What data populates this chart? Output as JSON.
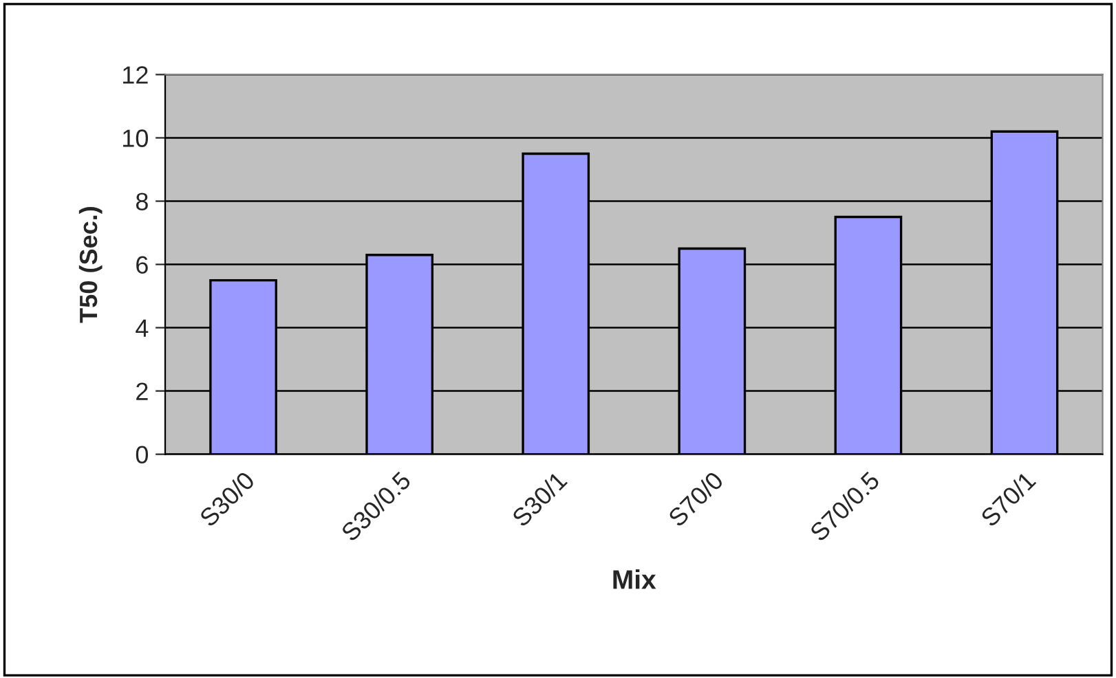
{
  "chart_data": {
    "type": "bar",
    "xlabel": "Mix",
    "ylabel": "T50 (Sec.)",
    "categories": [
      "S30/0",
      "S30/0.5",
      "S30/1",
      "S70/0",
      "S70/0.5",
      "S70/1"
    ],
    "values": [
      5.5,
      6.3,
      9.5,
      6.5,
      7.5,
      10.2
    ],
    "color": "#9999ff",
    "ylim": [
      0,
      12
    ],
    "yticks": [
      0,
      2,
      4,
      6,
      8,
      10,
      12
    ],
    "grid": "y"
  }
}
